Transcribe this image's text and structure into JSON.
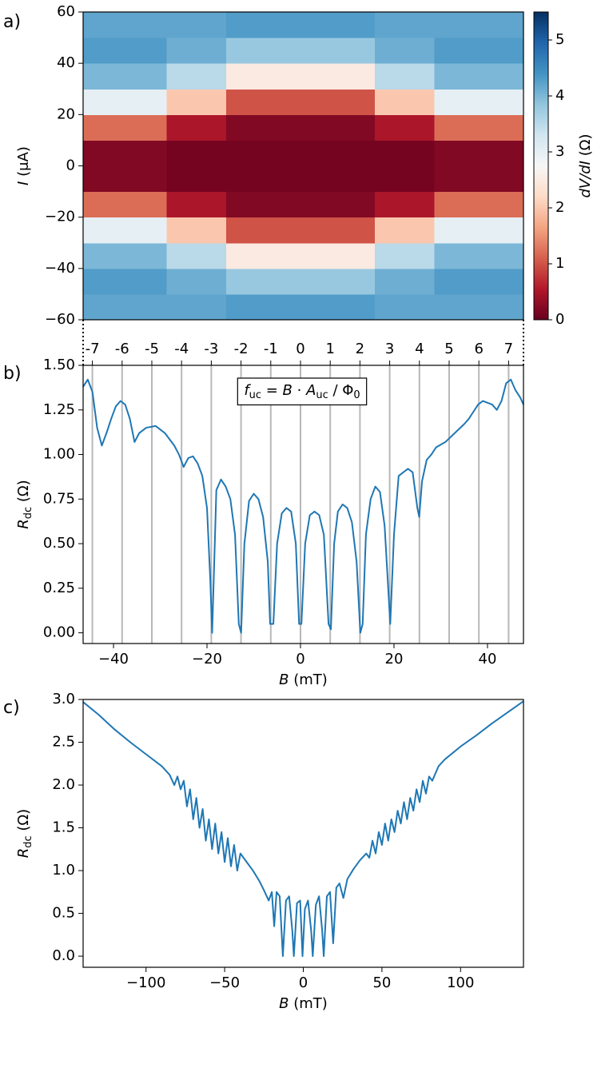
{
  "chart_data": [
    {
      "type": "heatmap",
      "panel_label": "a)",
      "ylabel_parts": [
        "I",
        " (μA)"
      ],
      "xlim": [
        -46.5,
        47.7
      ],
      "ylim": [
        -60,
        60
      ],
      "yticks": [
        {
          "value": -60,
          "label": "−60"
        },
        {
          "value": -40,
          "label": "−40"
        },
        {
          "value": -20,
          "label": "−20"
        },
        0,
        20,
        40,
        60
      ],
      "x_bins": [
        -46.5,
        -41.3,
        -35.0,
        -28.6,
        -22.3,
        -15.9,
        -9.5,
        -3.2,
        3.2,
        9.5,
        15.9,
        22.3,
        28.6,
        35.0,
        41.3,
        47.7
      ],
      "y_bins": [
        -60,
        -50,
        -40,
        -30,
        -20,
        -10,
        0,
        10,
        20,
        30,
        40,
        50,
        60
      ],
      "z": [
        [
          4.2,
          4.2,
          4.2,
          4.2,
          4.2,
          4.3,
          4.3,
          4.3,
          4.3,
          4.3,
          4.2,
          4.2,
          4.2,
          4.2,
          4.2
        ],
        [
          4.3,
          4.3,
          4.3,
          4.1,
          4.1,
          3.8,
          3.8,
          3.8,
          3.8,
          3.8,
          4.1,
          4.1,
          4.3,
          4.3,
          4.3
        ],
        [
          4.0,
          4.0,
          4.0,
          3.5,
          3.5,
          2.5,
          2.5,
          2.5,
          2.5,
          2.5,
          3.5,
          3.5,
          4.0,
          4.0,
          4.0
        ],
        [
          3.0,
          3.0,
          3.0,
          2.0,
          2.0,
          1.0,
          1.0,
          1.0,
          1.0,
          1.0,
          2.0,
          2.0,
          3.0,
          3.0,
          3.0
        ],
        [
          1.2,
          1.2,
          1.2,
          0.5,
          0.5,
          0.2,
          0.2,
          0.2,
          0.2,
          0.2,
          0.5,
          0.5,
          1.2,
          1.2,
          1.2
        ],
        [
          0.2,
          0.2,
          0.2,
          0.1,
          0.1,
          0.1,
          0.1,
          0.1,
          0.1,
          0.1,
          0.1,
          0.1,
          0.2,
          0.2,
          0.2
        ],
        [
          0.2,
          0.2,
          0.2,
          0.1,
          0.1,
          0.1,
          0.1,
          0.1,
          0.1,
          0.1,
          0.1,
          0.1,
          0.2,
          0.2,
          0.2
        ],
        [
          1.2,
          1.2,
          1.2,
          0.5,
          0.5,
          0.2,
          0.2,
          0.2,
          0.2,
          0.2,
          0.5,
          0.5,
          1.2,
          1.2,
          1.2
        ],
        [
          3.0,
          3.0,
          3.0,
          2.0,
          2.0,
          1.0,
          1.0,
          1.0,
          1.0,
          1.0,
          2.0,
          2.0,
          3.0,
          3.0,
          3.0
        ],
        [
          4.0,
          4.0,
          4.0,
          3.5,
          3.5,
          2.5,
          2.5,
          2.5,
          2.5,
          2.5,
          3.5,
          3.5,
          4.0,
          4.0,
          4.0
        ],
        [
          4.3,
          4.3,
          4.3,
          4.1,
          4.1,
          3.8,
          3.8,
          3.8,
          3.8,
          3.8,
          4.1,
          4.1,
          4.3,
          4.3,
          4.3
        ],
        [
          4.2,
          4.2,
          4.2,
          4.2,
          4.2,
          4.3,
          4.3,
          4.3,
          4.3,
          4.3,
          4.2,
          4.2,
          4.2,
          4.2,
          4.2
        ]
      ],
      "clim": [
        0,
        5.5
      ],
      "cticks": [
        0,
        1,
        2,
        3,
        4,
        5
      ],
      "colorbar_label_parts": [
        "dV/dI",
        " (Ω)"
      ],
      "colormap": [
        "#67001f",
        "#b2182b",
        "#d6604d",
        "#f4a582",
        "#fddbc7",
        "#f7f7f7",
        "#d1e5f0",
        "#92c5de",
        "#4393c3",
        "#2166ac",
        "#053061"
      ]
    },
    {
      "type": "line",
      "panel_label": "b)",
      "xlabel_parts": [
        "B",
        " (mT)"
      ],
      "ylabel_parts": [
        "R",
        "dc",
        " (Ω)"
      ],
      "annotation_parts": [
        "f",
        "uc",
        " = ",
        "B",
        " · ",
        "A",
        "uc",
        " / Φ",
        "0"
      ],
      "xlim": [
        -46.5,
        47.7
      ],
      "ylim": [
        -0.06,
        1.5
      ],
      "xticks": [
        {
          "value": -40,
          "label": "−40"
        },
        {
          "value": -20,
          "label": "−20"
        },
        0,
        20,
        40
      ],
      "yticks": [
        {
          "value": 0,
          "label": "0.00"
        },
        0.25,
        {
          "value": 0.5,
          "label": "0.50"
        },
        0.75,
        {
          "value": 1,
          "label": "1.00"
        },
        1.25,
        {
          "value": 1.5,
          "label": "1.50"
        }
      ],
      "secondary_xticks": [
        {
          "value": -44.52,
          "label": "-7"
        },
        {
          "value": -38.16,
          "label": "-6"
        },
        {
          "value": -31.8,
          "label": "-5"
        },
        {
          "value": -25.44,
          "label": "-4"
        },
        {
          "value": -19.08,
          "label": "-3"
        },
        {
          "value": -12.72,
          "label": "-2"
        },
        {
          "value": -6.36,
          "label": "-1"
        },
        0,
        {
          "value": 6.36,
          "label": "1"
        },
        {
          "value": 12.72,
          "label": "2"
        },
        {
          "value": 19.08,
          "label": "3"
        },
        {
          "value": 25.44,
          "label": "4"
        },
        {
          "value": 31.8,
          "label": "5"
        },
        {
          "value": 38.16,
          "label": "6"
        },
        {
          "value": 44.52,
          "label": "7"
        }
      ],
      "vline_color": "#b8b8b8",
      "x": [
        -46.5,
        -45.5,
        -44.5,
        -43.5,
        -42.5,
        -41.5,
        -40.5,
        -39.5,
        -38.5,
        -37.5,
        -36.5,
        -35.5,
        -34.5,
        -33,
        -31,
        -29,
        -27,
        -26,
        -25,
        -24,
        -23,
        -22,
        -21,
        -20,
        -19.3,
        -18.9,
        -18.5,
        -18,
        -17,
        -16,
        -15,
        -14,
        -13.2,
        -12.7,
        -12,
        -11,
        -10,
        -9,
        -8,
        -7,
        -6.5,
        -5.8,
        -5,
        -4,
        -3,
        -2,
        -1,
        -0.3,
        0.2,
        1,
        2,
        3,
        4,
        5,
        6,
        6.5,
        7.2,
        8,
        9,
        10,
        11,
        12,
        12.8,
        13.3,
        14,
        15,
        16,
        17,
        18,
        19.2,
        20,
        21,
        22,
        23,
        24,
        25,
        25.4,
        26,
        27,
        28,
        29,
        31,
        33,
        35,
        36,
        37,
        38,
        39,
        40,
        41,
        42,
        43,
        44,
        45,
        46,
        47,
        47.7
      ],
      "series": [
        {
          "color": "#1f77b4",
          "values": [
            1.38,
            1.42,
            1.35,
            1.15,
            1.05,
            1.12,
            1.2,
            1.27,
            1.3,
            1.28,
            1.2,
            1.07,
            1.12,
            1.15,
            1.16,
            1.12,
            1.05,
            1.0,
            0.93,
            0.98,
            0.99,
            0.95,
            0.88,
            0.7,
            0.3,
            0.0,
            0.35,
            0.8,
            0.86,
            0.82,
            0.75,
            0.55,
            0.05,
            0.0,
            0.5,
            0.74,
            0.78,
            0.75,
            0.65,
            0.4,
            0.05,
            0.05,
            0.5,
            0.67,
            0.7,
            0.68,
            0.5,
            0.05,
            0.05,
            0.5,
            0.66,
            0.68,
            0.66,
            0.55,
            0.05,
            0.02,
            0.5,
            0.68,
            0.72,
            0.7,
            0.62,
            0.4,
            0.0,
            0.05,
            0.55,
            0.75,
            0.82,
            0.79,
            0.6,
            0.05,
            0.55,
            0.88,
            0.9,
            0.92,
            0.9,
            0.7,
            0.65,
            0.85,
            0.97,
            1.0,
            1.04,
            1.07,
            1.12,
            1.17,
            1.2,
            1.24,
            1.28,
            1.3,
            1.29,
            1.28,
            1.25,
            1.3,
            1.4,
            1.42,
            1.36,
            1.32,
            1.28
          ]
        }
      ]
    },
    {
      "type": "line",
      "panel_label": "c)",
      "xlabel_parts": [
        "B",
        " (mT)"
      ],
      "ylabel_parts": [
        "R",
        "dc",
        " (Ω)"
      ],
      "xlim": [
        -140,
        140
      ],
      "ylim": [
        -0.13,
        3.0
      ],
      "xticks": [
        {
          "value": -100,
          "label": "−100"
        },
        {
          "value": -50,
          "label": "−50"
        },
        0,
        50,
        100
      ],
      "yticks": [
        {
          "value": 0,
          "label": "0.0"
        },
        0.5,
        {
          "value": 1,
          "label": "1.0"
        },
        1.5,
        {
          "value": 2,
          "label": "2.0"
        },
        2.5,
        {
          "value": 3,
          "label": "3.0"
        }
      ],
      "x": [
        -140,
        -130,
        -120,
        -110,
        -100,
        -90,
        -85,
        -82,
        -80,
        -78,
        -76,
        -74,
        -72,
        -70,
        -68,
        -66,
        -64,
        -62,
        -60,
        -58,
        -56,
        -54,
        -52,
        -50,
        -48,
        -46,
        -44,
        -42,
        -40,
        -36,
        -32,
        -28,
        -25,
        -22,
        -20,
        -18.5,
        -17,
        -15,
        -13,
        -11,
        -9,
        -7,
        -6,
        -4,
        -2,
        -0.5,
        1,
        3,
        5,
        6,
        8,
        10,
        12,
        13,
        15,
        17,
        19,
        21,
        23,
        25.5,
        28,
        32,
        36,
        40,
        42,
        44,
        46,
        48,
        50,
        52,
        54,
        56,
        58,
        60,
        62,
        64,
        66,
        68,
        70,
        72,
        74,
        76,
        78,
        80,
        82,
        86,
        90,
        100,
        110,
        120,
        130,
        140
      ],
      "series": [
        {
          "color": "#1f77b4",
          "values": [
            2.97,
            2.82,
            2.65,
            2.5,
            2.36,
            2.22,
            2.12,
            2.0,
            2.1,
            1.95,
            2.05,
            1.75,
            1.95,
            1.6,
            1.85,
            1.5,
            1.72,
            1.35,
            1.6,
            1.25,
            1.55,
            1.2,
            1.45,
            1.1,
            1.38,
            1.05,
            1.3,
            1.0,
            1.2,
            1.1,
            1.0,
            0.88,
            0.77,
            0.65,
            0.75,
            0.35,
            0.75,
            0.7,
            0.0,
            0.65,
            0.7,
            0.3,
            0.0,
            0.62,
            0.65,
            0.0,
            0.55,
            0.65,
            0.3,
            0.0,
            0.6,
            0.7,
            0.3,
            0.0,
            0.7,
            0.75,
            0.15,
            0.8,
            0.85,
            0.68,
            0.9,
            1.02,
            1.12,
            1.2,
            1.15,
            1.35,
            1.2,
            1.45,
            1.3,
            1.55,
            1.35,
            1.6,
            1.45,
            1.7,
            1.55,
            1.8,
            1.6,
            1.85,
            1.7,
            1.95,
            1.8,
            2.05,
            1.9,
            2.1,
            2.05,
            2.22,
            2.3,
            2.45,
            2.58,
            2.72,
            2.85,
            2.98
          ]
        }
      ]
    }
  ]
}
